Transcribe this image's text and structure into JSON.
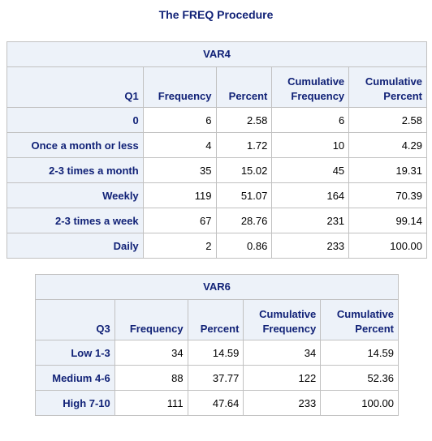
{
  "procedure_title": "The FREQ Procedure",
  "tables": [
    {
      "variable": "VAR4",
      "columns": [
        "Q1",
        "Frequency",
        "Percent",
        "Cumulative Frequency",
        "Cumulative Percent"
      ],
      "rows": [
        {
          "label": "0",
          "frequency": "6",
          "percent": "2.58",
          "cum_frequency": "6",
          "cum_percent": "2.58"
        },
        {
          "label": "Once a month or less",
          "frequency": "4",
          "percent": "1.72",
          "cum_frequency": "10",
          "cum_percent": "4.29"
        },
        {
          "label": "2-3 times a month",
          "frequency": "35",
          "percent": "15.02",
          "cum_frequency": "45",
          "cum_percent": "19.31"
        },
        {
          "label": "Weekly",
          "frequency": "119",
          "percent": "51.07",
          "cum_frequency": "164",
          "cum_percent": "70.39"
        },
        {
          "label": "2-3 times a week",
          "frequency": "67",
          "percent": "28.76",
          "cum_frequency": "231",
          "cum_percent": "99.14"
        },
        {
          "label": "Daily",
          "frequency": "2",
          "percent": "0.86",
          "cum_frequency": "233",
          "cum_percent": "100.00"
        }
      ]
    },
    {
      "variable": "VAR6",
      "columns": [
        "Q3",
        "Frequency",
        "Percent",
        "Cumulative Frequency",
        "Cumulative Percent"
      ],
      "rows": [
        {
          "label": "Low 1-3",
          "frequency": "34",
          "percent": "14.59",
          "cum_frequency": "34",
          "cum_percent": "14.59"
        },
        {
          "label": "Medium 4-6",
          "frequency": "88",
          "percent": "37.77",
          "cum_frequency": "122",
          "cum_percent": "52.36"
        },
        {
          "label": "High 7-10",
          "frequency": "111",
          "percent": "47.64",
          "cum_frequency": "233",
          "cum_percent": "100.00"
        }
      ]
    }
  ],
  "colors": {
    "header_background": "#edf2f9",
    "header_text": "#112277",
    "border": "#c1c1c1",
    "cell_background": "#ffffff"
  }
}
